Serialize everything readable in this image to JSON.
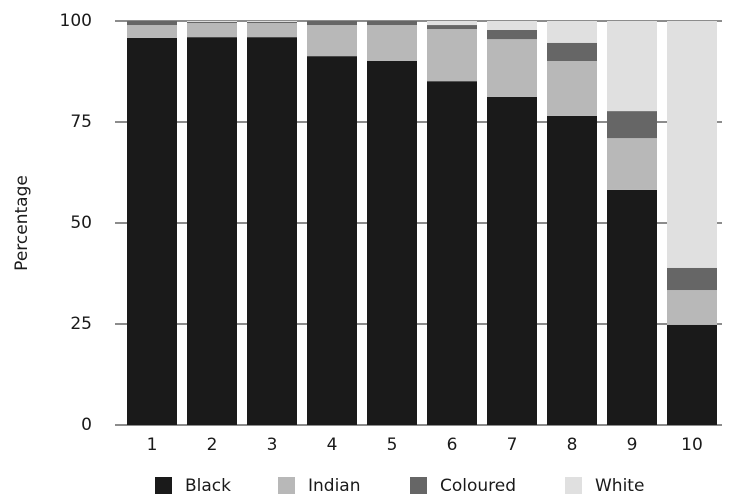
{
  "chart_data": {
    "type": "stacked_bar",
    "y_label": "Percentage",
    "categories": [
      "1",
      "2",
      "3",
      "4",
      "5",
      "6",
      "7",
      "8",
      "9",
      "10"
    ],
    "series": [
      {
        "name": "Black",
        "color": "#1a1a1a",
        "values": [
          95.8,
          96.0,
          96.0,
          91.3,
          90.1,
          85.1,
          81.2,
          76.5,
          58.2,
          24.8
        ]
      },
      {
        "name": "Indian",
        "color": "#b8b8b8",
        "values": [
          3.2,
          3.5,
          3.5,
          7.7,
          8.9,
          12.9,
          14.3,
          13.6,
          12.8,
          8.6
        ]
      },
      {
        "name": "Coloured",
        "color": "#666666",
        "values": [
          1.0,
          0.3,
          0.3,
          1.0,
          1.0,
          1.0,
          2.3,
          4.5,
          6.7,
          5.5
        ]
      },
      {
        "name": "White",
        "color": "#e0e0e0",
        "values": [
          0,
          0.2,
          0.2,
          0,
          0,
          1.0,
          2.2,
          5.4,
          22.3,
          61.1
        ]
      }
    ],
    "ylim": [
      0,
      100
    ],
    "yticks": [
      0,
      25,
      50,
      75,
      100
    ],
    "grid": true
  }
}
